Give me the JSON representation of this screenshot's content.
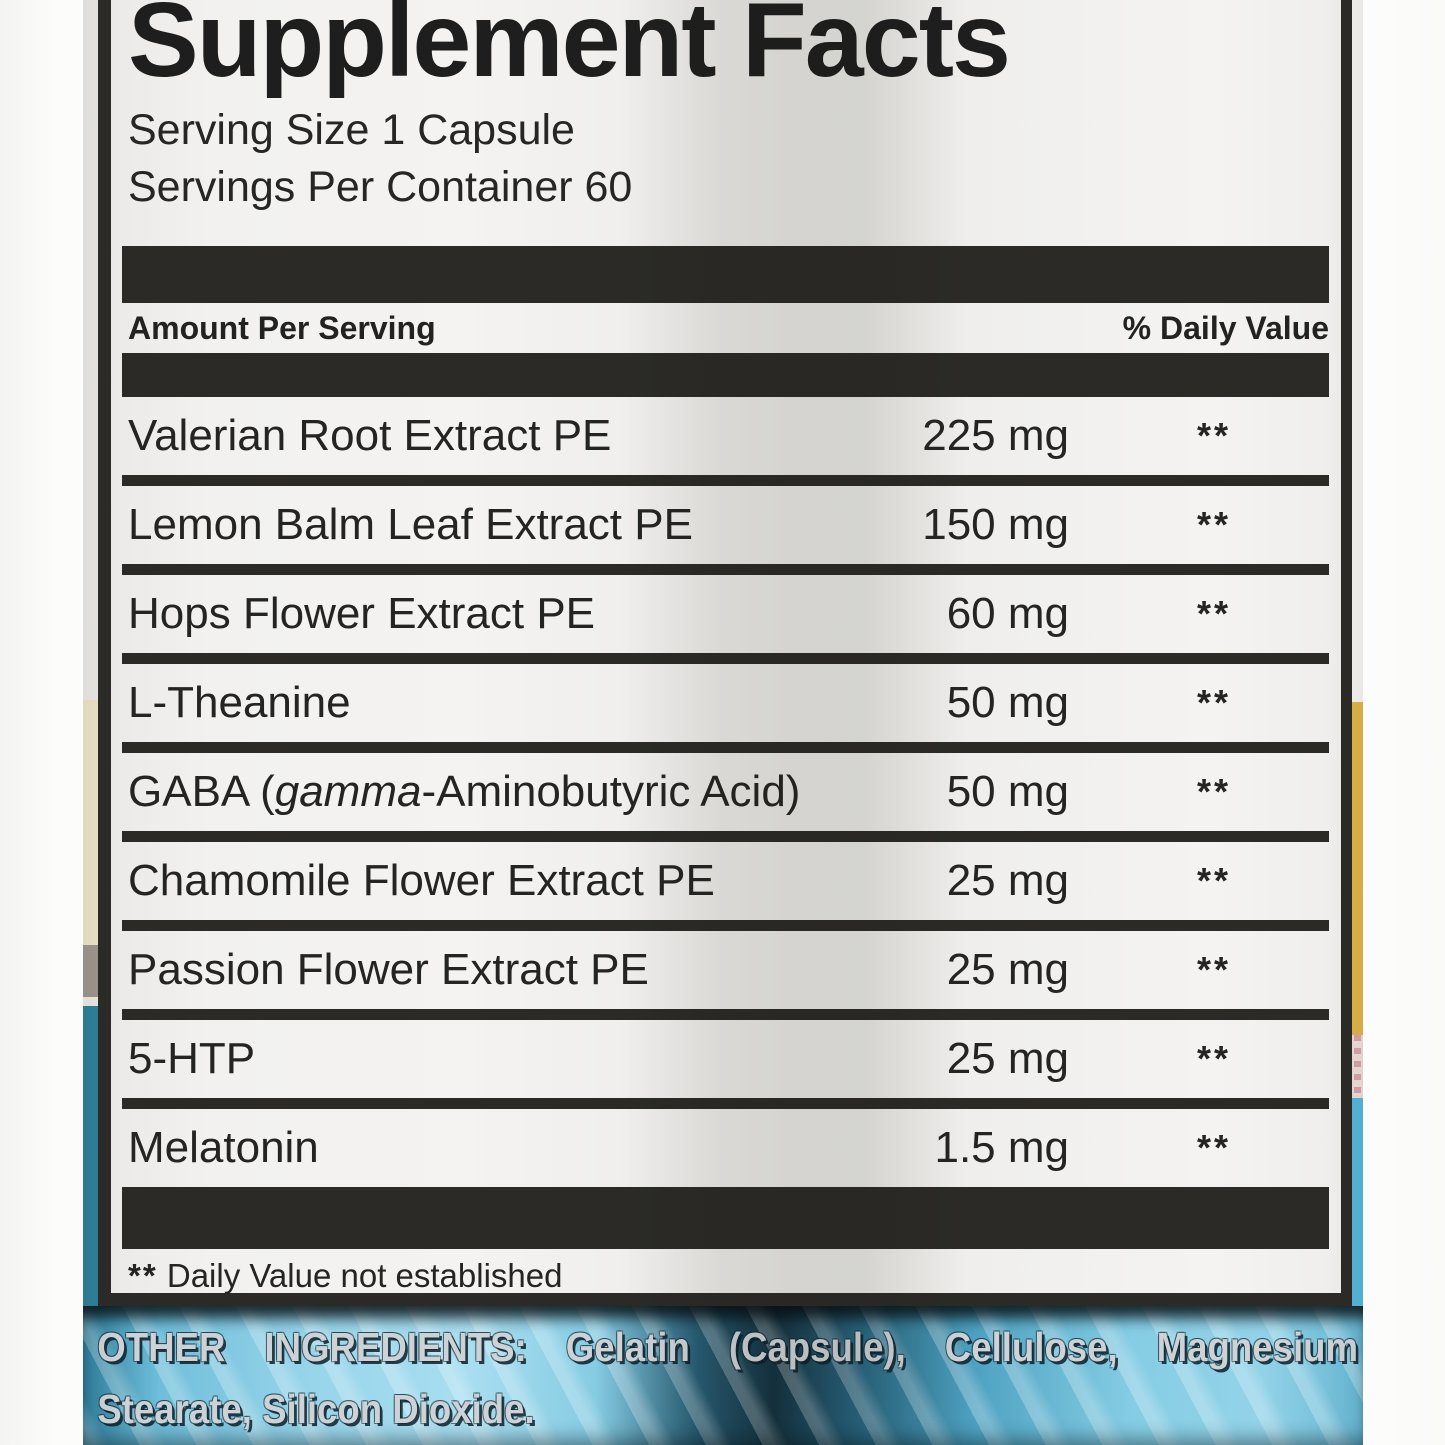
{
  "label": {
    "title": "Supplement Facts",
    "serving_size": "Serving Size 1 Capsule",
    "servings_per_container": "Servings Per Container 60",
    "columns": {
      "left": "Amount Per Serving",
      "right": "% Daily Value"
    },
    "rows": [
      {
        "name": "Valerian Root Extract PE",
        "amount": "225 mg",
        "daily_value": "**"
      },
      {
        "name": "Lemon Balm Leaf Extract PE",
        "amount": "150 mg",
        "daily_value": "**"
      },
      {
        "name": "Hops Flower Extract PE",
        "amount": "60 mg",
        "daily_value": "**"
      },
      {
        "name": "L-Theanine",
        "amount": "50 mg",
        "daily_value": "**"
      },
      {
        "name_prefix": "GABA (",
        "name_italic": "gamma",
        "name_suffix": "-Aminobutyric Acid)",
        "amount": "50 mg",
        "daily_value": "**"
      },
      {
        "name": "Chamomile Flower Extract PE",
        "amount": "25 mg",
        "daily_value": "**"
      },
      {
        "name": "Passion Flower Extract PE",
        "amount": "25 mg",
        "daily_value": "**"
      },
      {
        "name": "5-HTP",
        "amount": "25 mg",
        "daily_value": "**"
      },
      {
        "name": "Melatonin",
        "amount": "1.5 mg",
        "daily_value": "**"
      }
    ],
    "footnote_marker": "**",
    "footnote_text": " Daily Value not established"
  },
  "other_ingredients": {
    "line1": "OTHER INGREDIENTS: Gelatin (Capsule), Cellulose, Magnesium",
    "line2": "Stearate, Silicon Dioxide."
  },
  "colors": {
    "label_background": "#efeeec",
    "rule_black": "#2b2a26",
    "foil_blue_light": "#a9def0",
    "foil_blue_dark": "#143240",
    "side_gold": "#dcb247",
    "side_teal": "#2f7f99"
  }
}
